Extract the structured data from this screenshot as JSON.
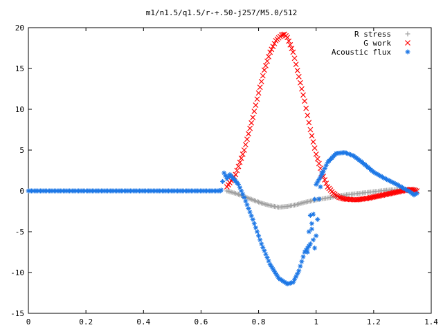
{
  "chart_data": {
    "type": "scatter",
    "title": "m1/n1.5/q1.5/r-+.50-j257/M5.0/512",
    "xlabel": "",
    "ylabel": "",
    "xlim": [
      0,
      1.4
    ],
    "ylim": [
      -15,
      20
    ],
    "xticks": [
      0,
      0.2,
      0.4,
      0.6,
      0.8,
      1,
      1.2,
      1.4
    ],
    "xtick_labels": [
      "0",
      "0.2",
      "0.4",
      "0.6",
      "0.8",
      "1",
      "1.2",
      "1.4"
    ],
    "yticks": [
      -15,
      -10,
      -5,
      0,
      5,
      10,
      15,
      20
    ],
    "ytick_labels": [
      "-15",
      "-10",
      "-5",
      "0",
      "5",
      "10",
      "15",
      "20"
    ],
    "grid": false,
    "legend_position": "top-right",
    "series": [
      {
        "name": "R stress",
        "marker": "plus",
        "color": "#a0a0a0",
        "x": [
          0.69,
          0.72,
          0.75,
          0.78,
          0.81,
          0.84,
          0.87,
          0.9,
          0.93,
          0.96,
          1.0,
          1.05,
          1.1,
          1.15,
          1.2,
          1.25,
          1.3,
          1.35
        ],
        "y": [
          0,
          -0.3,
          -0.7,
          -1.1,
          -1.5,
          -1.8,
          -2.0,
          -1.9,
          -1.7,
          -1.4,
          -1.1,
          -0.8,
          -0.5,
          -0.3,
          -0.1,
          0.1,
          0.2,
          0.1
        ]
      },
      {
        "name": "G work",
        "marker": "cross",
        "color": "#ff0000",
        "x": [
          0.69,
          0.72,
          0.75,
          0.78,
          0.8,
          0.82,
          0.84,
          0.86,
          0.88,
          0.89,
          0.9,
          0.92,
          0.94,
          0.96,
          0.98,
          1.0,
          1.02,
          1.04,
          1.06,
          1.08,
          1.1,
          1.14,
          1.18,
          1.22,
          1.26,
          1.3,
          1.33,
          1.35
        ],
        "y": [
          0.5,
          2.0,
          5.0,
          9.0,
          12.0,
          14.8,
          17.0,
          18.4,
          19.1,
          19.2,
          18.8,
          17.0,
          14.0,
          11.0,
          7.5,
          4.5,
          2.2,
          0.5,
          -0.3,
          -0.8,
          -1.0,
          -1.1,
          -0.9,
          -0.6,
          -0.3,
          0.0,
          0.2,
          0.0
        ]
      },
      {
        "name": "Acoustic flux",
        "marker": "star",
        "color": "#1e78e6",
        "x": [
          0.67,
          0.68,
          0.69,
          0.7,
          0.72,
          0.73,
          0.75,
          0.78,
          0.81,
          0.84,
          0.87,
          0.9,
          0.92,
          0.94,
          0.96,
          0.98,
          1.0,
          1.02,
          1.04,
          1.07,
          1.1,
          1.13,
          1.16,
          1.2,
          1.24,
          1.28,
          1.31,
          1.33,
          1.34,
          1.35
        ],
        "y": [
          0.1,
          2.2,
          1.5,
          2.0,
          1.2,
          0.8,
          -0.8,
          -3.5,
          -6.5,
          -9.0,
          -10.7,
          -11.4,
          -11.2,
          -9.8,
          -7.5,
          -6.5,
          0.8,
          2.0,
          3.5,
          4.6,
          4.7,
          4.3,
          3.5,
          2.3,
          1.5,
          0.8,
          0.2,
          -0.2,
          -0.5,
          -0.3
        ]
      },
      {
        "name": "",
        "marker": "star",
        "color": "#1e78e6",
        "x": [
          0.985,
          0.99,
          0.995,
          1.0,
          1.005,
          1.01,
          1.015,
          1.02,
          0.975,
          0.98,
          0.97
        ],
        "y": [
          -4.0,
          -6.0,
          -7.0,
          -5.5,
          -3.5,
          -1.0,
          0.5,
          2.2,
          -5.0,
          -3.0,
          -7.5
        ]
      }
    ]
  }
}
